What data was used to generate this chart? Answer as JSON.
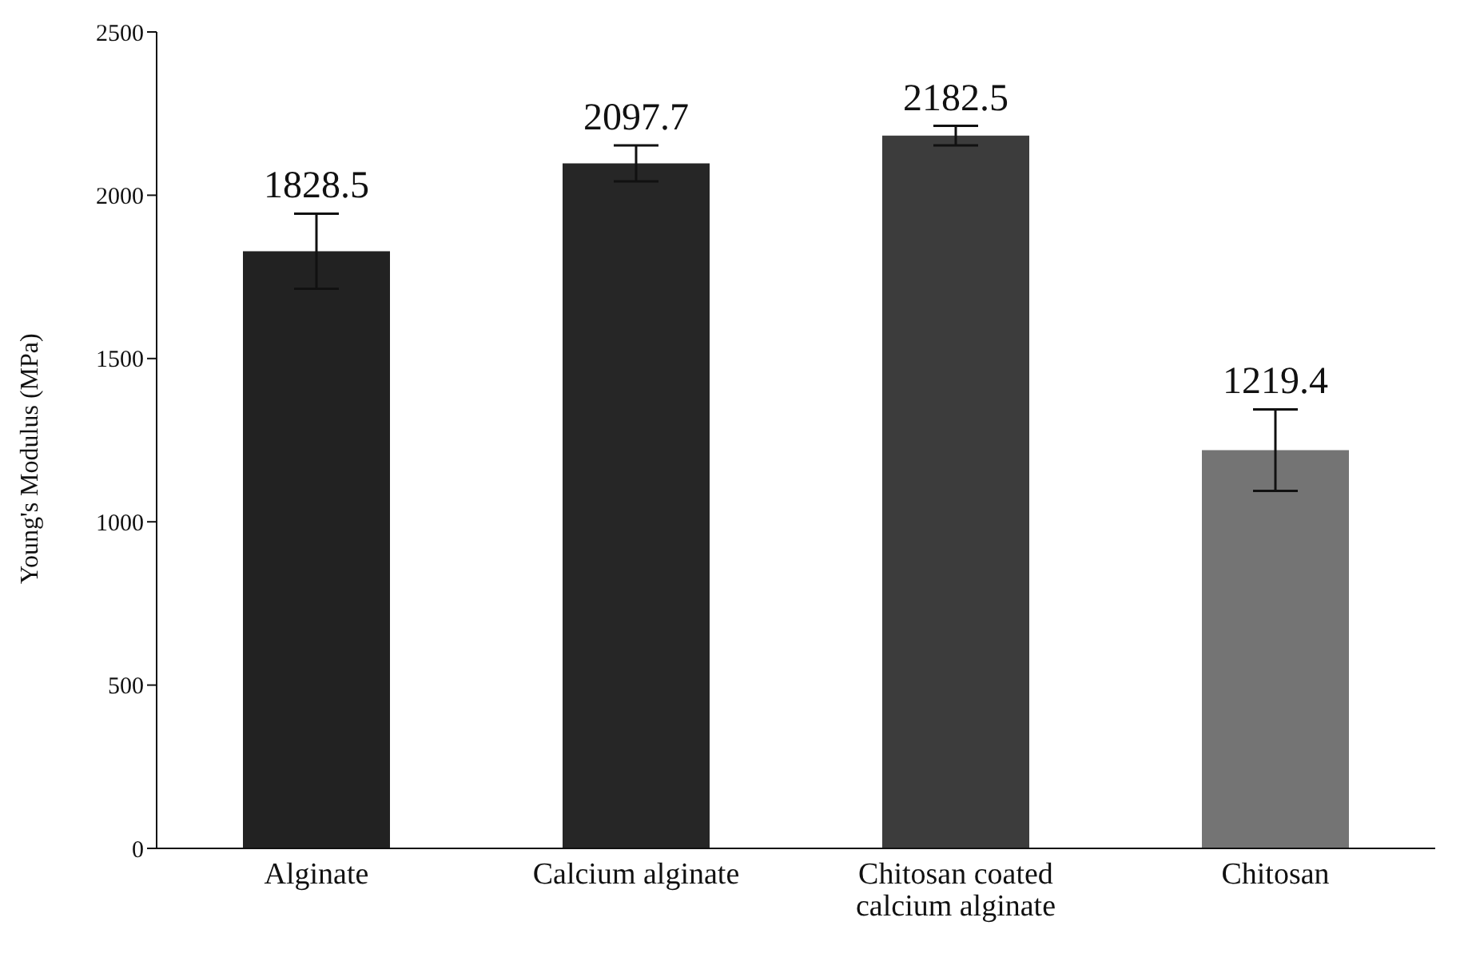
{
  "chart_data": {
    "type": "bar",
    "ylabel": "Young's Modulus (MPa)",
    "categories": [
      "Alginate",
      "Calcium alginate",
      "Chitosan coated calcium alginate",
      "Chitosan"
    ],
    "values": [
      1828.5,
      2097.7,
      2182.5,
      1219.4
    ],
    "errors": [
      115,
      55,
      30,
      125
    ],
    "colors": [
      "#222222",
      "#262626",
      "#3c3c3c",
      "#747474"
    ],
    "ylim": [
      0,
      2500
    ],
    "yticks": [
      0,
      500,
      1000,
      1500,
      2000,
      2500
    ],
    "grid": false,
    "data_labels": true
  }
}
